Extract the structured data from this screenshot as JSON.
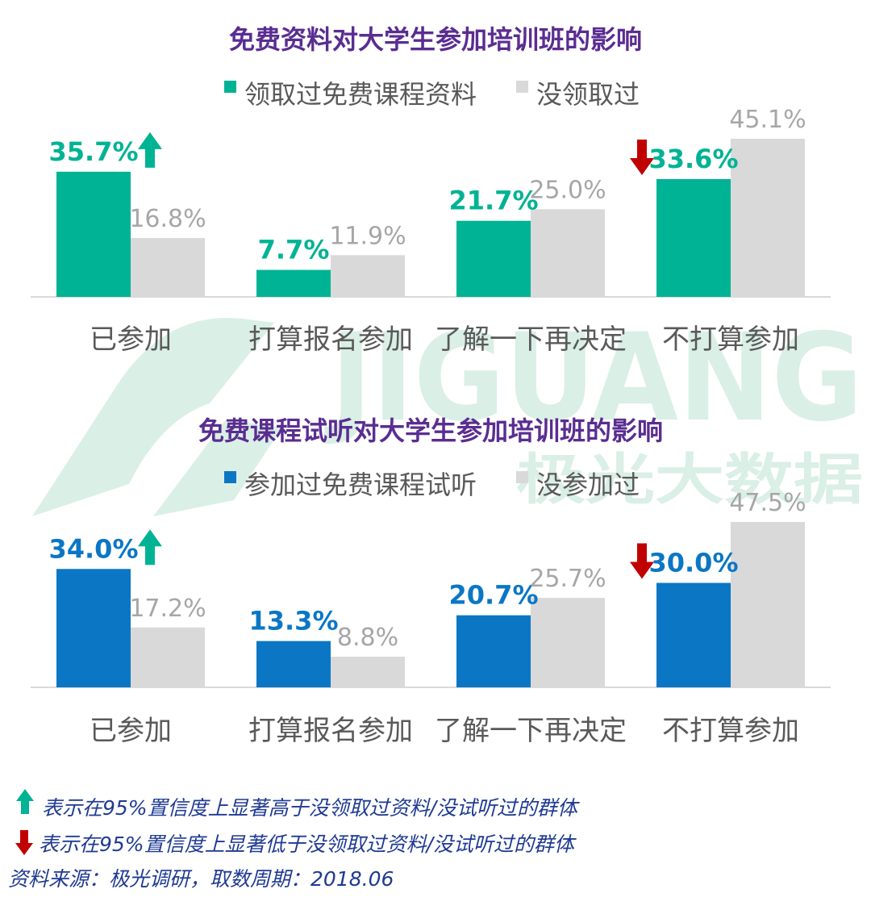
{
  "colors": {
    "title": "#5a2d91",
    "teal": "#00b394",
    "blue": "#0b77c4",
    "gray_bar": "#d9d9d9",
    "gray_label": "#a6a6a6",
    "up_arrow": "#00b394",
    "down_arrow": "#c00000",
    "note": "#1f3a93"
  },
  "watermark": {
    "logo_text": "JIGUANG",
    "cn_text": "极光大数据"
  },
  "chart_data": [
    {
      "type": "bar",
      "title": "免费资料对大学生参加培训班的影响",
      "categories": [
        "已参加",
        "打算报名参加",
        "了解一下再决定",
        "不打算参加"
      ],
      "series": [
        {
          "name": "领取过免费课程资料",
          "values": [
            35.7,
            7.7,
            21.7,
            33.6
          ],
          "labels": [
            "35.7%",
            "7.7%",
            "21.7%",
            "33.6%"
          ]
        },
        {
          "name": "没领取过",
          "values": [
            16.8,
            11.9,
            25.0,
            45.1
          ],
          "labels": [
            "16.8%",
            "11.9%",
            "25.0%",
            "45.1%"
          ]
        }
      ],
      "significance": [
        {
          "category": "已参加",
          "direction": "up"
        },
        {
          "category": "不打算参加",
          "direction": "down"
        }
      ],
      "ylim": [
        0,
        50
      ],
      "legend_position": "top"
    },
    {
      "type": "bar",
      "title": "免费课程试听对大学生参加培训班的影响",
      "categories": [
        "已参加",
        "打算报名参加",
        "了解一下再决定",
        "不打算参加"
      ],
      "series": [
        {
          "name": "参加过免费课程试听",
          "values": [
            34.0,
            13.3,
            20.7,
            30.0
          ],
          "labels": [
            "34.0%",
            "13.3%",
            "20.7%",
            "30.0%"
          ]
        },
        {
          "name": "没参加过",
          "values": [
            17.2,
            8.8,
            25.7,
            47.5
          ],
          "labels": [
            "17.2%",
            "8.8%",
            "25.7%",
            "47.5%"
          ]
        }
      ],
      "significance": [
        {
          "category": "已参加",
          "direction": "up"
        },
        {
          "category": "不打算参加",
          "direction": "down"
        }
      ],
      "ylim": [
        0,
        50
      ],
      "legend_position": "top"
    }
  ],
  "notes": {
    "up": "表示在95%置信度上显著高于没领取过资料/没试听过的群体",
    "down": "表示在95%置信度上显著低于没领取过资料/没试听过的群体",
    "source": "资料来源：极光调研，取数周期：2018.06"
  }
}
